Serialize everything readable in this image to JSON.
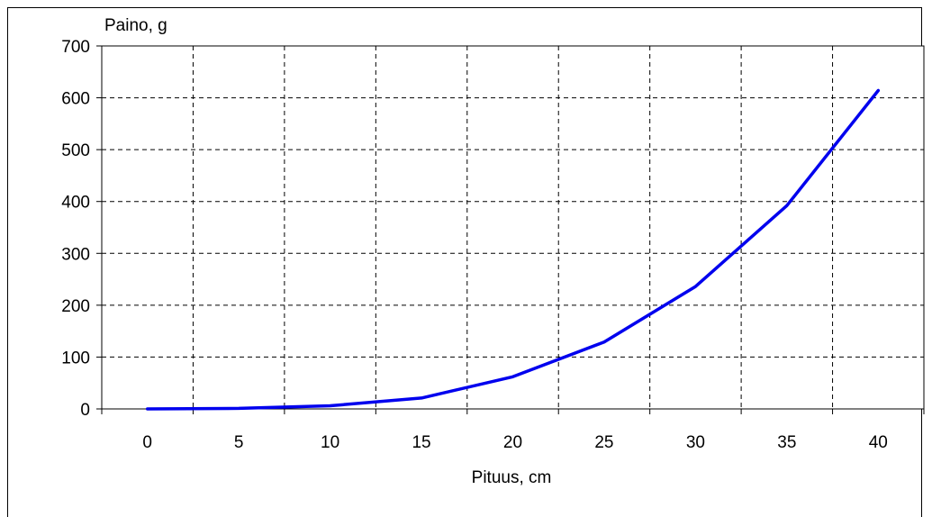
{
  "chart_data": {
    "type": "line",
    "title": "",
    "xlabel": "Pituus, cm",
    "ylabel": "Paino, g",
    "x_ticks": [
      "0",
      "5",
      "10",
      "15",
      "20",
      "25",
      "30",
      "35",
      "40"
    ],
    "y_ticks": [
      "0",
      "100",
      "200",
      "300",
      "400",
      "500",
      "600",
      "700"
    ],
    "ylim": [
      0,
      700
    ],
    "xlim": [
      0,
      40
    ],
    "grid": true,
    "legend": "none",
    "series": [
      {
        "color": "#0000ee",
        "x": [
          0,
          5,
          10,
          15,
          20,
          25,
          30,
          35,
          40
        ],
        "y": [
          0,
          1,
          6,
          21,
          62,
          129,
          236,
          392,
          614
        ]
      }
    ]
  }
}
